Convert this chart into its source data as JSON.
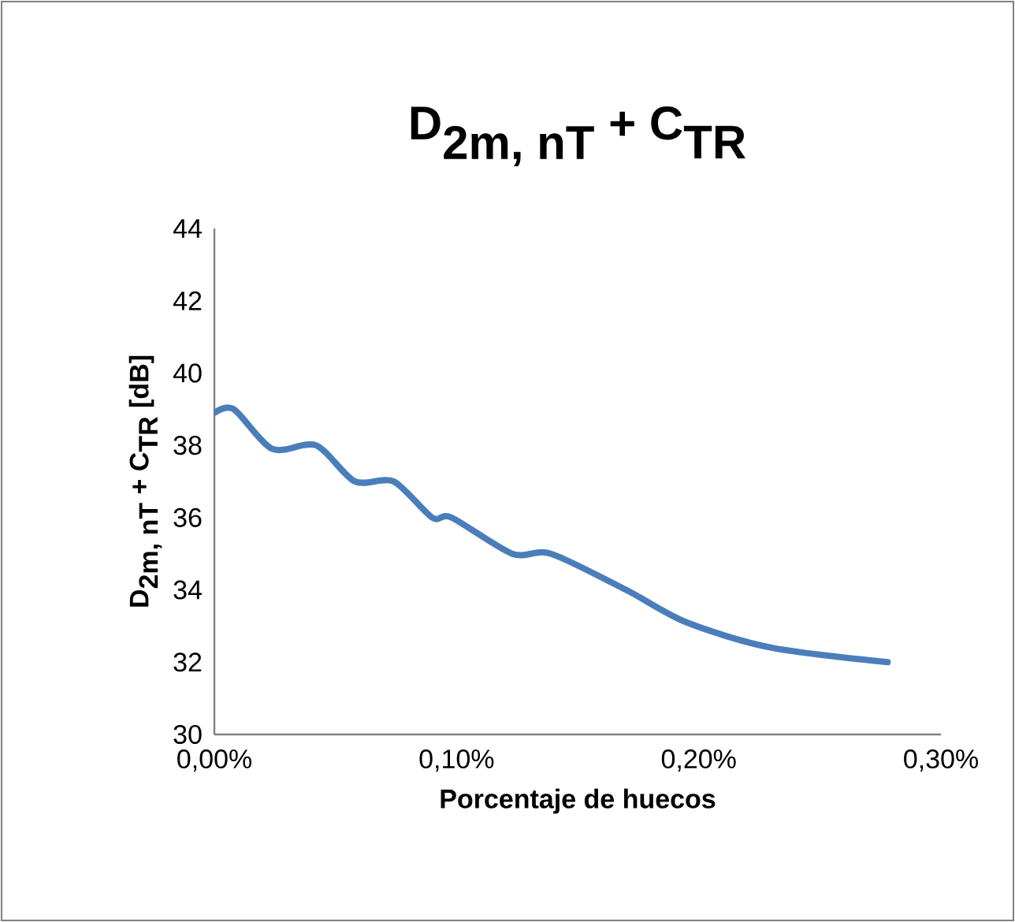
{
  "chart_data": {
    "type": "line",
    "title": "\\textbf{D}_{\\textbf{2m, nT}}\\textbf{ + C}_{\\textbf{TR}}",
    "xlabel": "Porcentaje de huecos",
    "ylabel": "\\textbf{D}_{\\textbf{2m, nT}}\\textbf{ + C}_{\\textbf{TR}}\\textbf{ [dB]}",
    "x": [
      0,
      0.008,
      0.024,
      0.042,
      0.058,
      0.074,
      0.09,
      0.098,
      0.123,
      0.139,
      0.17,
      0.195,
      0.23,
      0.278
    ],
    "series": [
      {
        "color": "#4a7ebb",
        "values": [
          38.9,
          39,
          37.9,
          38,
          37,
          37,
          36,
          36,
          35,
          35,
          34,
          33.1,
          32.4,
          32
        ]
      }
    ],
    "xlim": [
      0,
      0.3
    ],
    "ylim": [
      30,
      44
    ],
    "xticks": [
      {
        "value": 0,
        "label": "0,00%"
      },
      {
        "value": 0.1,
        "label": "0,10%"
      },
      {
        "value": 0.2,
        "label": "0,20%"
      },
      {
        "value": 0.3,
        "label": "0,30%"
      }
    ],
    "yticks": [
      30,
      32,
      34,
      36,
      38,
      40,
      42,
      44
    ],
    "grid": false,
    "marker": "none",
    "line_style": "solid"
  }
}
